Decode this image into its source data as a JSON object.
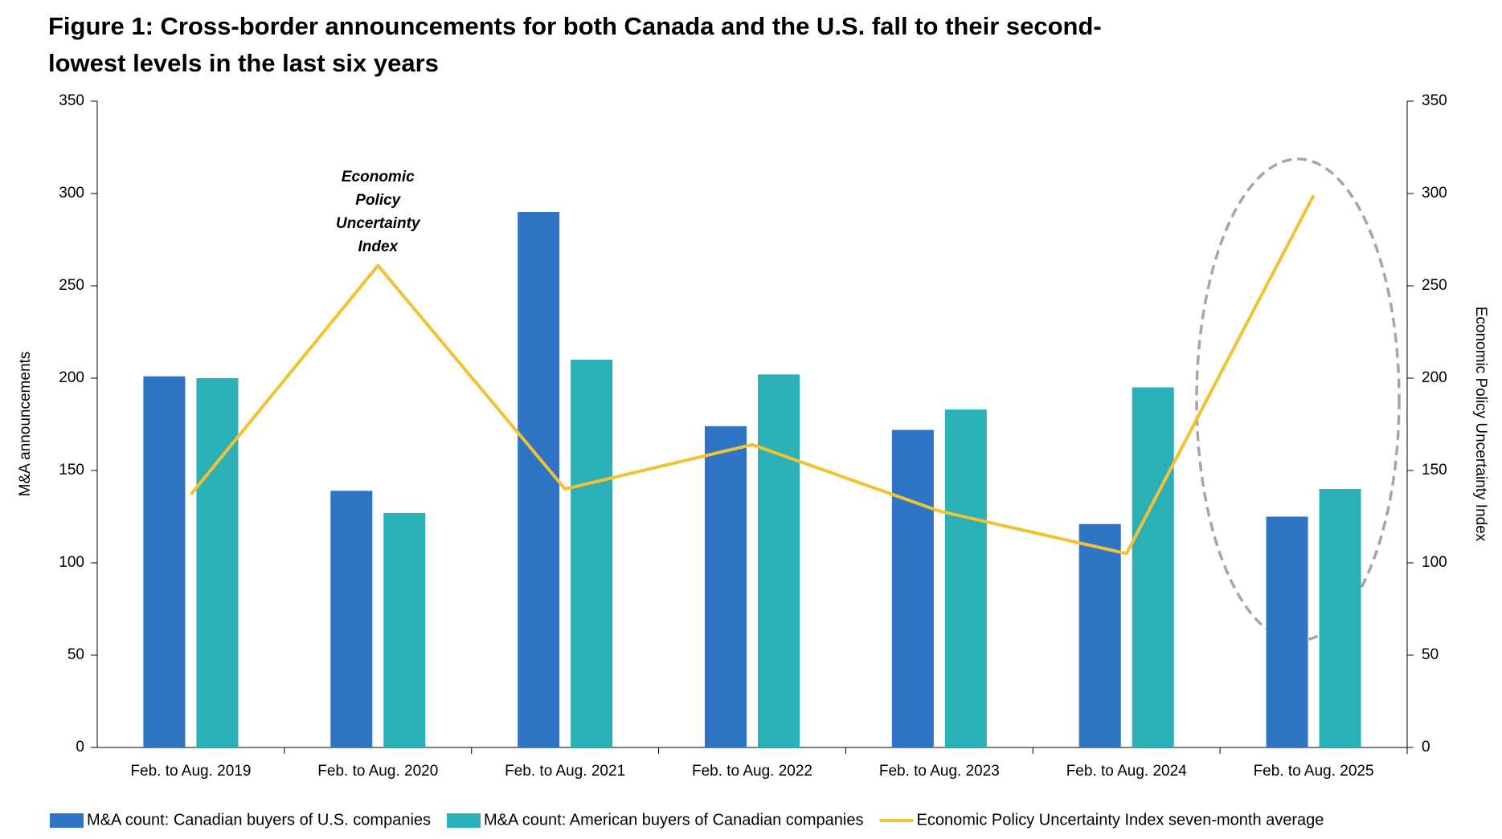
{
  "chart_data": {
    "type": "bar",
    "title": "Figure 1: Cross-border announcements for both Canada and the U.S. fall to their second-lowest levels in the last six years",
    "categories": [
      "Feb. to Aug. 2019",
      "Feb. to Aug. 2020",
      "Feb. to Aug. 2021",
      "Feb. to Aug. 2022",
      "Feb. to Aug. 2023",
      "Feb. to Aug. 2024",
      "Feb. to Aug. 2025"
    ],
    "series": [
      {
        "name": "M&A count: Canadian buyers of U.S. companies",
        "color": "#2e75c6",
        "type": "bar",
        "values": [
          201,
          139,
          290,
          174,
          172,
          121,
          125
        ]
      },
      {
        "name": "M&A count: American buyers of Canadian companies",
        "color": "#2bb0b8",
        "type": "bar",
        "values": [
          200,
          127,
          210,
          202,
          183,
          195,
          140
        ]
      },
      {
        "name": "Economic Policy Uncertainty Index seven-month average",
        "color": "#f2c232",
        "type": "line",
        "axis": "y2",
        "values": [
          137,
          261,
          140,
          164,
          128,
          105,
          299
        ]
      }
    ],
    "y_label": "M&A announcements",
    "y2_label": "Economic Policy Uncertainty Index",
    "ylim": [
      0,
      350
    ],
    "yticks": [
      0,
      50,
      100,
      150,
      200,
      250,
      300,
      350
    ],
    "y2lim": [
      0,
      350
    ],
    "y2ticks": [
      0,
      50,
      100,
      150,
      200,
      250,
      300,
      350
    ],
    "annotation": [
      "Economic",
      "Policy",
      "Uncertainty",
      "Index"
    ],
    "legend": "bottom"
  }
}
